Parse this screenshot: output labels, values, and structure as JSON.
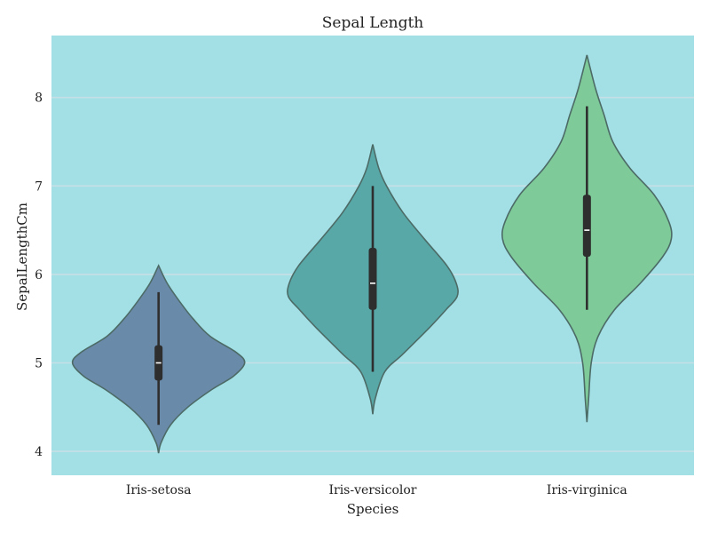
{
  "chart_data": {
    "type": "violin",
    "title": "Sepal Length",
    "xlabel": "Species",
    "ylabel": "SepalLengthCm",
    "categories": [
      "Iris-setosa",
      "Iris-versicolor",
      "Iris-virginica"
    ],
    "y_ticks": [
      4,
      5,
      6,
      7,
      8
    ],
    "ylim": [
      3.73,
      8.7
    ],
    "grid": true,
    "legend": "none",
    "colors": {
      "plot_background": "#a2e0e6",
      "grid": "#c6dfe6",
      "violin_outline": "#4d6b66",
      "box": "#2e2e2e",
      "median": "#ffffff",
      "series": [
        "#6a8aaa",
        "#58a8a8",
        "#7ecb99"
      ]
    },
    "series": [
      {
        "category": "Iris-setosa",
        "min": 4.3,
        "q1": 4.8,
        "median": 5.0,
        "q3": 5.2,
        "max": 5.8,
        "kde_range": [
          3.98,
          6.1
        ],
        "density_profile": [
          [
            3.98,
            0.0
          ],
          [
            4.1,
            0.03
          ],
          [
            4.3,
            0.14
          ],
          [
            4.5,
            0.34
          ],
          [
            4.7,
            0.62
          ],
          [
            4.85,
            0.87
          ],
          [
            5.0,
            1.0
          ],
          [
            5.12,
            0.9
          ],
          [
            5.3,
            0.6
          ],
          [
            5.5,
            0.4
          ],
          [
            5.7,
            0.24
          ],
          [
            5.9,
            0.1
          ],
          [
            6.1,
            0.0
          ]
        ]
      },
      {
        "category": "Iris-versicolor",
        "min": 4.9,
        "q1": 5.6,
        "median": 5.9,
        "q3": 6.3,
        "max": 7.0,
        "kde_range": [
          4.42,
          7.47
        ],
        "density_profile": [
          [
            4.42,
            0.0
          ],
          [
            4.6,
            0.03
          ],
          [
            4.9,
            0.14
          ],
          [
            5.1,
            0.35
          ],
          [
            5.4,
            0.66
          ],
          [
            5.6,
            0.85
          ],
          [
            5.75,
            0.98
          ],
          [
            5.9,
            0.97
          ],
          [
            6.1,
            0.86
          ],
          [
            6.4,
            0.6
          ],
          [
            6.7,
            0.35
          ],
          [
            7.0,
            0.16
          ],
          [
            7.2,
            0.07
          ],
          [
            7.47,
            0.0
          ]
        ]
      },
      {
        "category": "Iris-virginica",
        "min": 5.6,
        "q1": 6.2,
        "median": 6.5,
        "q3": 6.9,
        "max": 7.9,
        "kde_range": [
          4.33,
          8.48
        ],
        "density_profile": [
          [
            4.33,
            0.0
          ],
          [
            4.6,
            0.02
          ],
          [
            5.0,
            0.05
          ],
          [
            5.3,
            0.13
          ],
          [
            5.6,
            0.32
          ],
          [
            5.9,
            0.62
          ],
          [
            6.2,
            0.88
          ],
          [
            6.4,
            0.98
          ],
          [
            6.6,
            0.95
          ],
          [
            6.9,
            0.78
          ],
          [
            7.2,
            0.5
          ],
          [
            7.5,
            0.3
          ],
          [
            7.8,
            0.2
          ],
          [
            8.1,
            0.1
          ],
          [
            8.48,
            0.0
          ]
        ]
      }
    ]
  }
}
